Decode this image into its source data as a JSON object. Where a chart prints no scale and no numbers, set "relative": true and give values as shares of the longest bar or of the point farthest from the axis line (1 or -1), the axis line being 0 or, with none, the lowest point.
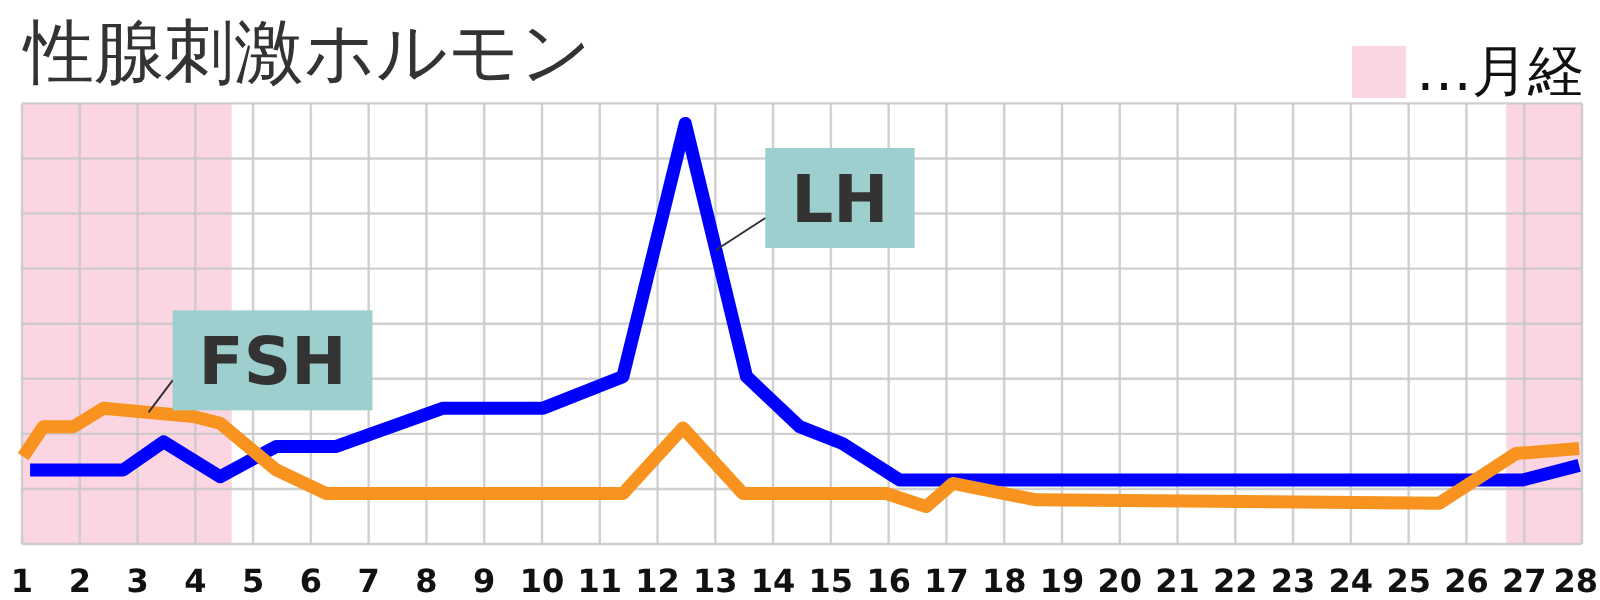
{
  "chart_data": {
    "type": "line",
    "title": "性腺刺激ホルモン",
    "relative": true,
    "grid": true,
    "legend": "top right",
    "xlim": [
      1,
      28
    ],
    "xticks": [
      1,
      2,
      3,
      4,
      5,
      6,
      7,
      8,
      9,
      10,
      11,
      12,
      13,
      14,
      15,
      16,
      17,
      18,
      19,
      20,
      21,
      22,
      23,
      24,
      25,
      26,
      27,
      28
    ],
    "bands": [
      {
        "axis": "x",
        "from": 1,
        "to": 4.63,
        "label": "…月経",
        "color": "#fcd5e2"
      },
      {
        "axis": "x",
        "from": 26.69,
        "to": 28,
        "color": "#fcd5e2"
      }
    ],
    "series": [
      {
        "name": "LH",
        "color": "#0000ff",
        "x": [
          1.14,
          2.75,
          3.45,
          4.43,
          5.4,
          6.44,
          8.29,
          10.02,
          11.4,
          12.48,
          13.54,
          14.46,
          15.2,
          16.19,
          26.97,
          27.95
        ],
        "values": [
          0.176,
          0.176,
          0.243,
          0.16,
          0.232,
          0.232,
          0.323,
          0.323,
          0.398,
          1,
          0.398,
          0.279,
          0.239,
          0.152,
          0.152,
          0.187
        ]
      },
      {
        "name": "FSH",
        "color": "#f7931e",
        "x": [
          1.02,
          1.37,
          1.89,
          2.41,
          3.97,
          4.43,
          5.4,
          6.27,
          11.4,
          12.44,
          13.48,
          15.96,
          16.65,
          17.11,
          18.55,
          25.53,
          26.86,
          27.95
        ],
        "values": [
          0.208,
          0.279,
          0.279,
          0.323,
          0.303,
          0.287,
          0.176,
          0.12,
          0.12,
          0.276,
          0.12,
          0.12,
          0.089,
          0.144,
          0.105,
          0.097,
          0.215,
          0.227
        ]
      }
    ]
  }
}
